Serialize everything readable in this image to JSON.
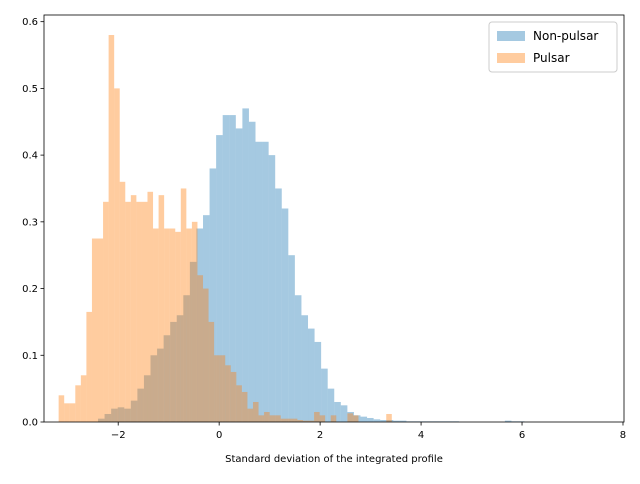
{
  "chart_data": {
    "type": "histogram",
    "xlabel": "Standard deviation of the integrated profile",
    "ylabel": "",
    "xlim": [
      -3.47,
      8.02
    ],
    "ylim": [
      0,
      0.61
    ],
    "xticks": [
      -2,
      0,
      2,
      4,
      6,
      8
    ],
    "yticks": [
      0.0,
      0.1,
      0.2,
      0.3,
      0.4,
      0.5,
      0.6
    ],
    "xtick_labels": [
      "−2",
      "0",
      "2",
      "4",
      "6",
      "8"
    ],
    "ytick_labels": [
      "0.0",
      "0.1",
      "0.2",
      "0.3",
      "0.4",
      "0.5",
      "0.6"
    ],
    "grid": false,
    "legend_position": "top-right",
    "series": [
      {
        "name": "Non-pulsar",
        "color": "#1f77b4",
        "alpha": 0.4,
        "bin_start": -2.4,
        "bin_width": 0.13,
        "values": [
          0.005,
          0.012,
          0.02,
          0.022,
          0.02,
          0.032,
          0.05,
          0.07,
          0.1,
          0.11,
          0.13,
          0.15,
          0.16,
          0.19,
          0.24,
          0.29,
          0.31,
          0.38,
          0.43,
          0.46,
          0.46,
          0.44,
          0.47,
          0.45,
          0.42,
          0.42,
          0.4,
          0.35,
          0.32,
          0.25,
          0.19,
          0.16,
          0.14,
          0.12,
          0.08,
          0.05,
          0.03,
          0.025,
          0.015,
          0.01,
          0.008,
          0.006,
          0.004,
          0.003,
          0.003,
          0.002,
          0.002,
          0.001,
          0.001,
          0.001,
          0.001,
          0.001,
          0.001,
          0.001,
          0.001,
          0.0,
          0.0,
          0.0,
          0.0,
          0.0,
          0.0,
          0.0,
          0.002,
          0.001,
          0.001,
          0.0,
          0.0,
          0.0,
          0.0,
          0.0,
          0.0,
          0.0,
          0.0,
          0.0,
          0.0,
          0.0,
          0.0,
          0.0,
          0.0,
          0.0,
          0.0
        ]
      },
      {
        "name": "Pulsar",
        "color": "#ff7f0e",
        "alpha": 0.4,
        "bin_start": -3.18,
        "bin_width": 0.11,
        "values": [
          0.04,
          0.028,
          0.028,
          0.055,
          0.07,
          0.165,
          0.275,
          0.275,
          0.33,
          0.58,
          0.5,
          0.36,
          0.33,
          0.34,
          0.33,
          0.33,
          0.345,
          0.29,
          0.34,
          0.29,
          0.29,
          0.285,
          0.35,
          0.29,
          0.3,
          0.22,
          0.2,
          0.15,
          0.1,
          0.1,
          0.085,
          0.075,
          0.055,
          0.045,
          0.02,
          0.03,
          0.01,
          0.015,
          0.01,
          0.01,
          0.005,
          0.005,
          0.005,
          0.003,
          0.002,
          0.002,
          0.015,
          0.01,
          0.0,
          0.01,
          0.0,
          0.0,
          0.013,
          0.01,
          0.0,
          0.0,
          0.0,
          0.0,
          0.0,
          0.012,
          0.0,
          0.0,
          0.0,
          0.0,
          0.0,
          0.0,
          0.0,
          0.0,
          0.0,
          0.0,
          0.0,
          0.0,
          0.0,
          0.0,
          0.0,
          0.0,
          0.0,
          0.0,
          0.0,
          0.0,
          0.0,
          0.0,
          0.0,
          0.0,
          0.0,
          0.0,
          0.0,
          0.0,
          0.0,
          0.0,
          0.0,
          0.0,
          0.0,
          0.0,
          0.0,
          0.0,
          0.0,
          0.0,
          0.0,
          0.0
        ]
      }
    ]
  }
}
